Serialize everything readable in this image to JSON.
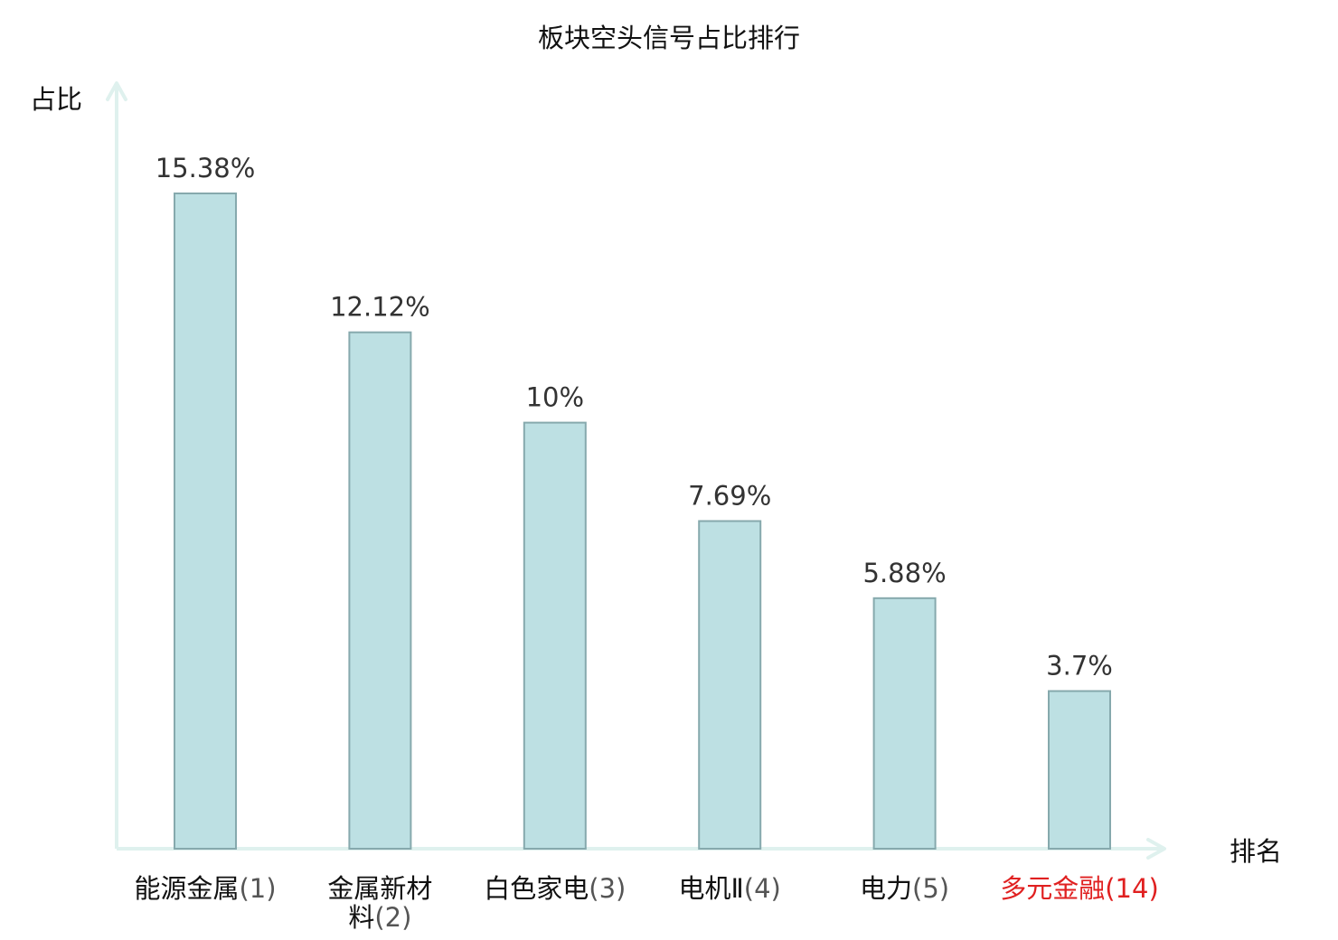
{
  "chart_data": {
    "type": "bar",
    "title": "板块空头信号占比排行",
    "ylabel": "占比",
    "xlabel": "排名",
    "categories": [
      {
        "name": "能源金属",
        "rank": "(1)"
      },
      {
        "name": "金属新材料",
        "rank": "(2)"
      },
      {
        "name": "白色家电",
        "rank": "(3)"
      },
      {
        "name": "电机Ⅱ",
        "rank": "(4)"
      },
      {
        "name": "电力",
        "rank": "(5)"
      },
      {
        "name": "多元金融",
        "rank": "(14)"
      }
    ],
    "values": [
      15.38,
      12.12,
      10,
      7.69,
      5.88,
      3.7
    ],
    "value_labels": [
      "15.38%",
      "12.12%",
      "10%",
      "7.69%",
      "5.88%",
      "3.7%"
    ],
    "highlight_index": 5,
    "ylim": [
      0,
      17.5
    ],
    "grid": false,
    "colors": {
      "bar_fill": "#bde0e3",
      "bar_stroke": "#86a9ad",
      "axis": "#dff1ee",
      "highlight": "#e02020"
    }
  }
}
